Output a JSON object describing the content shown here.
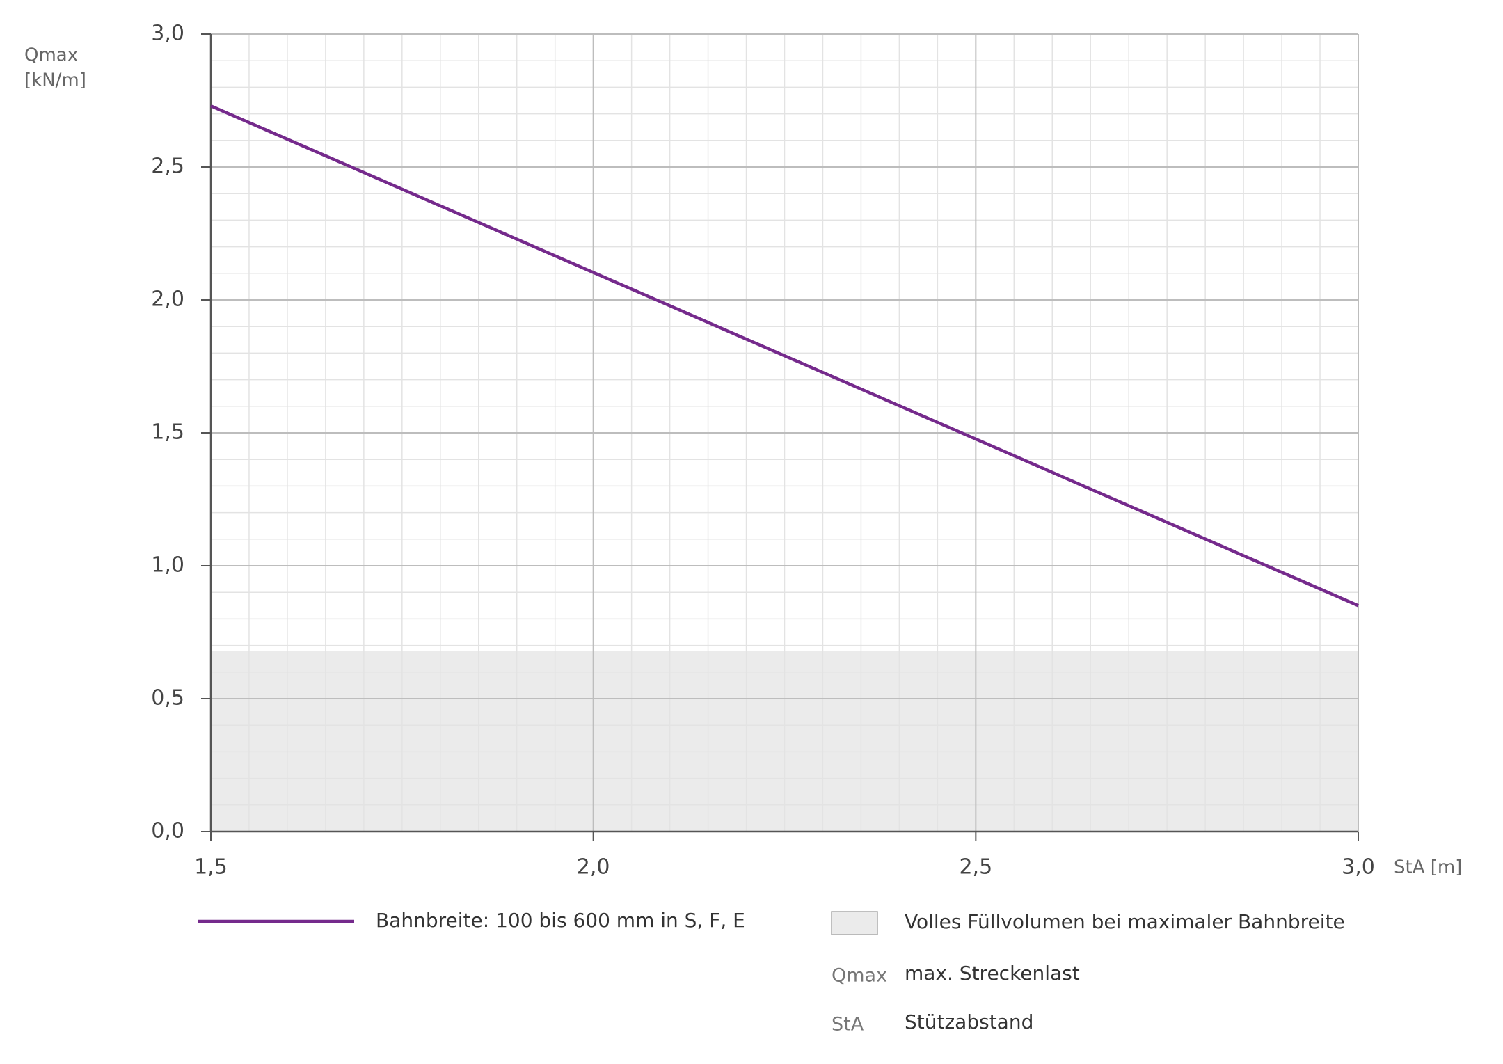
{
  "chart_data": {
    "type": "line",
    "ylabel": [
      "Qmax",
      "[kN/m]"
    ],
    "xlabel": "StA [m]",
    "xlim": [
      1.5,
      3.0
    ],
    "ylim": [
      0,
      3.0
    ],
    "xticks": [
      {
        "value": 1.5,
        "label": "1,5"
      },
      {
        "value": 2.0,
        "label": "2,0"
      },
      {
        "value": 2.5,
        "label": "2,5"
      },
      {
        "value": 3.0,
        "label": "3,0"
      }
    ],
    "yticks": [
      {
        "value": 0,
        "label": "0,0"
      },
      {
        "value": 0.5,
        "label": "0,5"
      },
      {
        "value": 1.0,
        "label": "1,0"
      },
      {
        "value": 1.5,
        "label": "1,5"
      },
      {
        "value": 2.0,
        "label": "2,0"
      },
      {
        "value": 2.5,
        "label": "2,5"
      },
      {
        "value": 3.0,
        "label": "3,0"
      }
    ],
    "grid": true,
    "series": [
      {
        "name": "Bahnbreite: 100 bis 600 mm in S, F, E",
        "color": "#752a8c",
        "x": [
          1.5,
          3.0
        ],
        "values": [
          2.73,
          0.85
        ]
      }
    ],
    "areas": [
      {
        "name": "Volles Füllvolumen bei maximaler Bahnbreite",
        "color": "#ebebeb",
        "from": 0,
        "to": 0.68
      }
    ],
    "notes": [
      {
        "symbol": "Qmax",
        "text": "max. Streckenlast"
      },
      {
        "symbol": "StA",
        "text": "Stützabstand"
      }
    ]
  }
}
